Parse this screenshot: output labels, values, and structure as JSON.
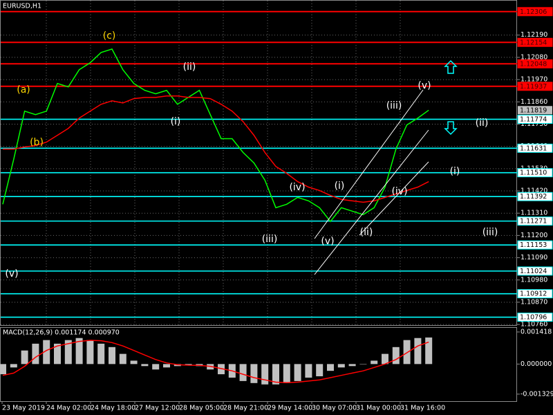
{
  "chart_data": [
    {
      "type": "line",
      "title": "EURUSD,H1",
      "ylim": [
        1.10757,
        1.1236
      ],
      "yticks": [
        {
          "value": 1.1219,
          "label": "1.12190"
        },
        {
          "value": 1.1208,
          "label": "1.12080"
        },
        {
          "value": 1.1197,
          "label": "1.11970"
        },
        {
          "value": 1.1186,
          "label": "1.11860"
        },
        {
          "value": 1.1175,
          "label": "1.11750"
        },
        {
          "value": 1.1164,
          "label": "1.11640"
        },
        {
          "value": 1.1153,
          "label": "1.11530"
        },
        {
          "value": 1.1142,
          "label": "1.11420"
        },
        {
          "value": 1.1131,
          "label": "1.11310"
        },
        {
          "value": 1.112,
          "label": "1.11200"
        },
        {
          "value": 1.1109,
          "label": "1.11090"
        },
        {
          "value": 1.1098,
          "label": "1.10980"
        },
        {
          "value": 1.1087,
          "label": "1.10870"
        },
        {
          "value": 1.1076,
          "label": "1.10760"
        }
      ],
      "grid": true,
      "time_labels": [
        "23 May 2019",
        "24 May 02:00",
        "24 May 18:00",
        "27 May 12:00",
        "28 May 05:00",
        "28 May 21:00",
        "29 May 14:00",
        "30 May 07:00",
        "31 May 00:00",
        "31 May 16:00"
      ],
      "levels": [
        1.12306,
        1.12154,
        1.12048,
        1.11937,
        1.11774,
        1.11631,
        {
          "value": 1.1151,
          "label": "1.11510"
        },
        1.11392,
        1.11271,
        1.11153,
        1.11024,
        1.10912,
        1.10796
      ],
      "level_colors": [
        "#ff0000",
        "#ff0000",
        "#ff0000",
        "#ff0000",
        "#00ffff",
        "#00ffff",
        "#00ffff",
        "#00ffff",
        "#00ffff",
        "#00ffff",
        "#00ffff",
        "#00ffff",
        "#00ffff"
      ],
      "last_price": 1.11819,
      "series": [
        {
          "color": "#00ff00",
          "values": [
            1.11354,
            1.11576,
            1.11814,
            1.11797,
            1.11814,
            1.11951,
            1.11934,
            1.12019,
            1.12053,
            1.12104,
            1.12121,
            1.12019,
            1.11951,
            1.11917,
            1.119,
            1.11917,
            1.11848,
            1.11883,
            1.11917,
            1.11797,
            1.11678,
            1.11678,
            1.1161,
            1.11558,
            1.11473,
            1.11337,
            1.11354,
            1.11388,
            1.11371,
            1.11337,
            1.11269,
            1.11337,
            1.1132,
            1.11303,
            1.11337,
            1.11439,
            1.11627,
            1.11746,
            1.1178,
            1.11819
          ]
        },
        {
          "color": "#ff0000",
          "values": [
            1.11627,
            1.11627,
            1.11637,
            1.11644,
            1.11661,
            1.11695,
            1.11729,
            1.1178,
            1.11814,
            1.11848,
            1.11865,
            1.11855,
            1.11876,
            1.11882,
            1.11882,
            1.11889,
            1.11889,
            1.11882,
            1.11882,
            1.11876,
            1.11848,
            1.11814,
            1.11763,
            1.11695,
            1.1161,
            1.11541,
            1.11507,
            1.11466,
            1.11439,
            1.11422,
            1.11398,
            1.11378,
            1.11371,
            1.11364,
            1.11371,
            1.11388,
            1.11405,
            1.11422,
            1.11439,
            1.11466
          ]
        }
      ],
      "annotations": [
        {
          "text": "(c)",
          "color": "#ffd700"
        },
        {
          "text": "(a)",
          "color": "#ffd700"
        },
        {
          "text": "(b)",
          "color": "#ffd700"
        },
        {
          "text": "(ii)",
          "color": "#ffffff"
        },
        {
          "text": "(i)",
          "color": "#ffffff"
        },
        {
          "text": "(iii)",
          "color": "#ffffff"
        },
        {
          "text": "(iv)",
          "color": "#ffffff"
        },
        {
          "text": "(i)",
          "color": "#ffffff"
        },
        {
          "text": "(v)",
          "color": "#ffffff"
        },
        {
          "text": "(ii)",
          "color": "#ffffff"
        },
        {
          "text": "(iii)",
          "color": "#ffffff"
        },
        {
          "text": "(iv)",
          "color": "#ffffff"
        },
        {
          "text": "(v)",
          "color": "#ffffff"
        },
        {
          "text": "(ii)",
          "color": "#ffffff"
        },
        {
          "text": "(i)",
          "color": "#ffffff"
        },
        {
          "text": "(iii)",
          "color": "#ffffff"
        },
        {
          "text": "(v)",
          "color": "#ffffff"
        }
      ]
    },
    {
      "type": "bar",
      "title": "MACD(12,26,9) 0.001174 0.000970",
      "ylim": [
        -0.00164,
        0.0016
      ],
      "yticks": [
        0.001418,
        {
          "value": 0,
          "label": "0.000000"
        },
        -0.001329
      ],
      "series": [
        {
          "color": "#c0c0c0",
          "values": [
            -0.00045,
            -0.00015,
            0.0006,
            0.0009,
            0.00106,
            0.0009,
            0.00106,
            0.00115,
            0.00106,
            0.0009,
            0.00075,
            0.00045,
            0.00015,
            -9e-05,
            -0.00024,
            -0.00015,
            -9e-05,
            -6e-05,
            -9e-05,
            -0.00024,
            -0.00045,
            -0.0006,
            -0.00075,
            -0.00084,
            -0.0009,
            -0.0009,
            -0.00084,
            -0.00075,
            -0.0006,
            -0.00054,
            -0.0003,
            -0.00015,
            -9e-05,
            0,
            0.00015,
            0.00045,
            0.00075,
            0.00106,
            0.00115,
            0.001174
          ]
        },
        {
          "color": "#ff0000",
          "type": "line",
          "values": [
            -0.0005,
            -0.0004,
            -0.0001,
            0.0003,
            0.0006,
            0.0008,
            0.0009,
            0.001,
            0.00105,
            0.00103,
            0.00095,
            0.0008,
            0.0006,
            0.0004,
            0.0002,
            5e-05,
            -3e-05,
            -5e-05,
            -6e-05,
            -0.0001,
            -0.0002,
            -0.0003,
            -0.00045,
            -0.0006,
            -0.0007,
            -0.0008,
            -0.00082,
            -0.0008,
            -0.00075,
            -0.0007,
            -0.0006,
            -0.0005,
            -0.0004,
            -0.0003,
            -0.00015,
            0,
            0.0002,
            0.0005,
            0.0008,
            0.00097
          ]
        }
      ]
    }
  ]
}
